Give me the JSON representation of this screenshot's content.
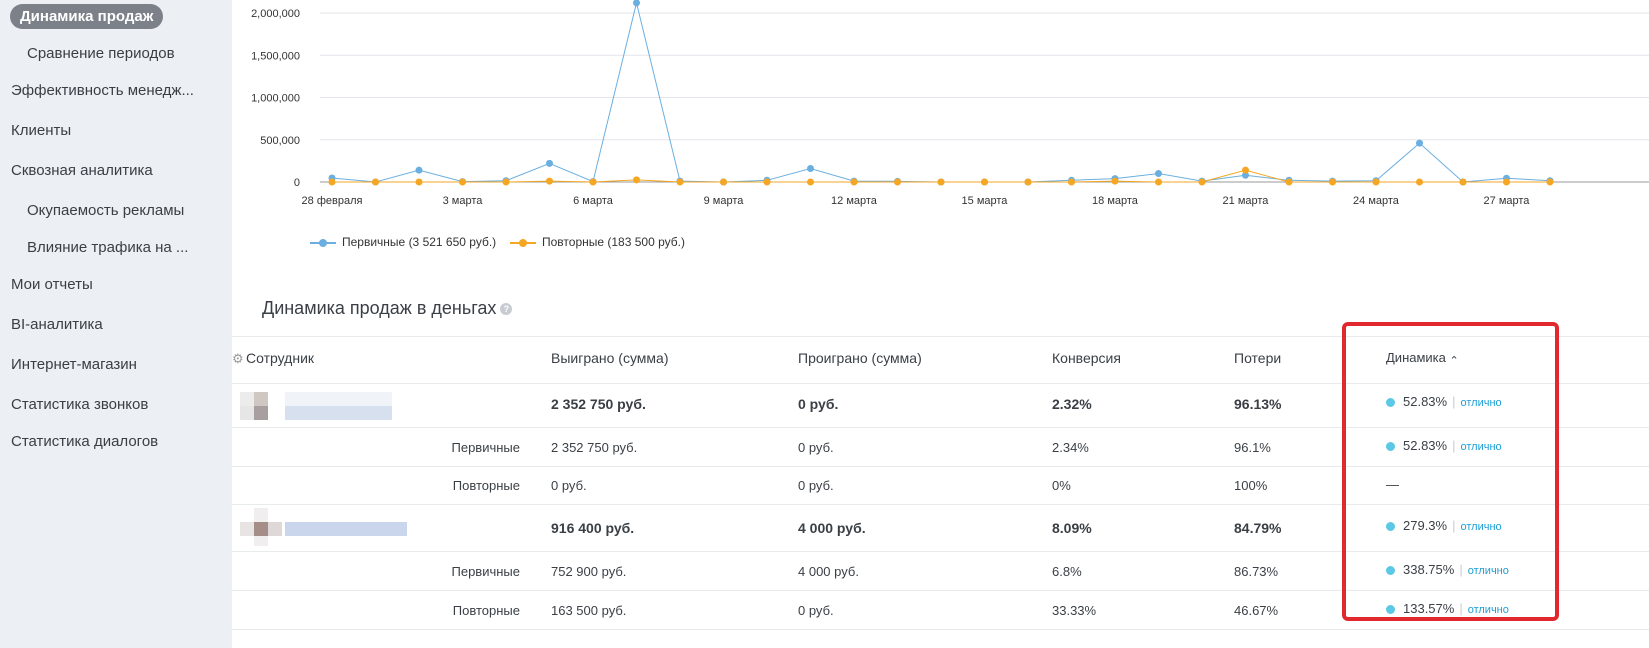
{
  "sidebar": {
    "items": [
      {
        "label": "Динамика продаж",
        "active": true
      },
      {
        "label": "Сравнение периодов",
        "sub": true
      },
      {
        "label": "Эффективность менедж..."
      },
      {
        "label": "Клиенты"
      },
      {
        "label": "Сквозная аналитика"
      },
      {
        "label": "Окупаемость рекламы",
        "sub": true
      },
      {
        "label": "Влияние трафика на ...",
        "sub": true
      },
      {
        "label": "Мои отчеты"
      },
      {
        "label": "BI-аналитика"
      },
      {
        "label": "Интернет-магазин"
      },
      {
        "label": "Статистика звонков"
      },
      {
        "label": "Статистика диалогов"
      }
    ]
  },
  "chart_data": {
    "type": "line",
    "title": "",
    "xlabel": "",
    "ylabel": "",
    "ylim": [
      0,
      2000000
    ],
    "y_ticks": [
      "2,000,000",
      "1,500,000",
      "1,000,000",
      "500,000",
      "0"
    ],
    "x_tick_labels": [
      "28 февраля",
      "3 марта",
      "6 марта",
      "9 марта",
      "12 марта",
      "15 марта",
      "18 марта",
      "21 марта",
      "24 марта",
      "27 марта"
    ],
    "x": [
      "28 февраля",
      "1 марта",
      "2 марта",
      "3 марта",
      "4 марта",
      "5 марта",
      "6 марта",
      "7 марта",
      "8 марта",
      "9 марта",
      "10 марта",
      "11 марта",
      "12 марта",
      "13 марта",
      "14 марта",
      "15 марта",
      "16 марта",
      "17 марта",
      "18 марта",
      "19 марта",
      "20 марта",
      "21 марта",
      "22 марта",
      "23 марта",
      "24 марта",
      "25 марта",
      "26 марта",
      "27 марта",
      "28 марта"
    ],
    "series": [
      {
        "name": "Первичные (3 521 650 руб.)",
        "color": "#6aafe0",
        "values": [
          48000,
          0,
          140000,
          5000,
          15000,
          220000,
          5000,
          2120000,
          10000,
          0,
          20000,
          160000,
          10000,
          8000,
          0,
          0,
          0,
          20000,
          40000,
          100000,
          10000,
          80000,
          20000,
          10000,
          15000,
          460000,
          0,
          45000,
          15000
        ]
      },
      {
        "name": "Повторные (183 500 руб.)",
        "color": "#f5a623",
        "values": [
          0,
          0,
          0,
          0,
          0,
          10000,
          0,
          25000,
          0,
          0,
          0,
          0,
          0,
          0,
          0,
          0,
          0,
          0,
          10000,
          0,
          0,
          140000,
          0,
          0,
          0,
          0,
          0,
          0,
          0
        ]
      }
    ],
    "legend_position": "bottom-left",
    "grid": true
  },
  "section": {
    "title": "Динамика продаж в деньгах",
    "help": "?"
  },
  "table": {
    "columns": [
      "Сотрудник",
      "Выиграно (сумма)",
      "Проиграно (сумма)",
      "Конверсия",
      "Потери",
      "Динамика"
    ],
    "sort_arrow": "⌃",
    "rows": [
      {
        "type": "employee",
        "won": "2 352 750 руб.",
        "lost": "0 руб.",
        "conv": "2.32%",
        "loss": "96.13%",
        "dyn": "52.83%",
        "tag": "отлично"
      },
      {
        "type": "sub",
        "label": "Первичные",
        "won": "2 352 750 руб.",
        "lost": "0 руб.",
        "conv": "2.34%",
        "loss": "96.1%",
        "dyn": "52.83%",
        "tag": "отлично"
      },
      {
        "type": "sub",
        "label": "Повторные",
        "won": "0 руб.",
        "lost": "0 руб.",
        "conv": "0%",
        "loss": "100%",
        "dyn": "—",
        "tag": ""
      },
      {
        "type": "employee",
        "won": "916 400 руб.",
        "lost": "4 000 руб.",
        "conv": "8.09%",
        "loss": "84.79%",
        "dyn": "279.3%",
        "tag": "отлично"
      },
      {
        "type": "sub",
        "label": "Первичные",
        "won": "752 900 руб.",
        "lost": "4 000 руб.",
        "conv": "6.8%",
        "loss": "86.73%",
        "dyn": "338.75%",
        "tag": "отлично"
      },
      {
        "type": "sub",
        "label": "Повторные",
        "won": "163 500 руб.",
        "lost": "0 руб.",
        "conv": "33.33%",
        "loss": "46.67%",
        "dyn": "133.57%",
        "tag": "отлично"
      }
    ]
  }
}
